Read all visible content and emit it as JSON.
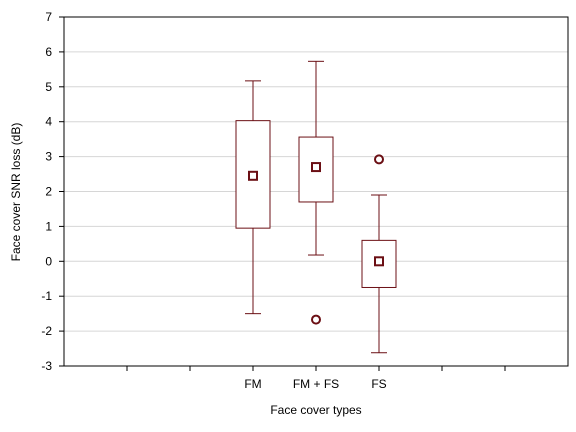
{
  "chart_data": {
    "type": "box",
    "xlabel": "Face cover types",
    "ylabel": "Face cover SNR loss (dB)",
    "ylim": [
      -3,
      7
    ],
    "y_ticks": [
      -3,
      -2,
      -1,
      0,
      1,
      2,
      3,
      4,
      5,
      6,
      7
    ],
    "y_tick_labels": [
      "-3",
      "-2",
      "-1",
      "0",
      "1",
      "2",
      "3",
      "4",
      "5",
      "6",
      "7"
    ],
    "categories": [
      "FM",
      "FM + FS",
      "FS"
    ],
    "category_positions": [
      3,
      4,
      5
    ],
    "x_range": [
      0,
      8
    ],
    "minor_x_ticks": [
      1,
      2,
      6,
      7
    ],
    "grid": true,
    "color": "#6b0f14",
    "boxes": [
      {
        "category": "FM",
        "whisker_low": -1.5,
        "q1": 0.95,
        "center": 2.45,
        "q3": 4.03,
        "whisker_high": 5.17,
        "outliers": []
      },
      {
        "category": "FM + FS",
        "whisker_low": 0.18,
        "q1": 1.7,
        "center": 2.7,
        "q3": 3.56,
        "whisker_high": 5.73,
        "outliers": [
          -1.67
        ]
      },
      {
        "category": "FS",
        "whisker_low": -2.62,
        "q1": -0.75,
        "center": 0.0,
        "q3": 0.6,
        "whisker_high": 1.9,
        "outliers": [
          2.92
        ]
      }
    ]
  }
}
